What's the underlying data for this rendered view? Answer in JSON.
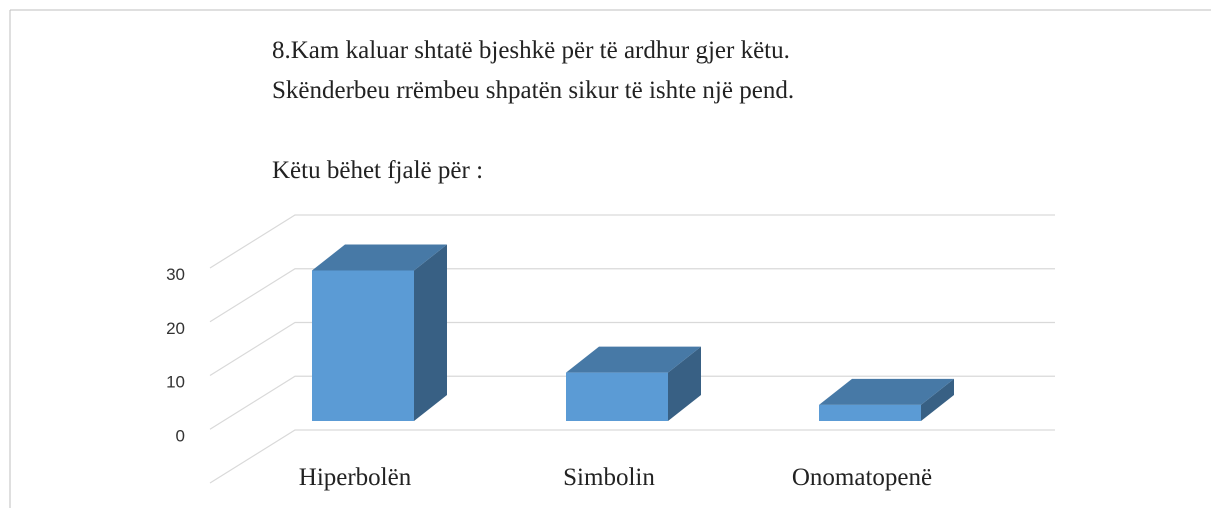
{
  "chart_data": {
    "type": "bar3d",
    "title": [
      "8.Kam kaluar shtatë bjeshkë për të ardhur gjer këtu.",
      "Skënderbeu rrëmbeu shpatën sikur të ishte një pend.",
      "Këtu bëhet fjalë për :"
    ],
    "categories": [
      "Hiperbolën",
      "Simbolin",
      "Onomatopenë"
    ],
    "values": [
      28,
      9,
      3
    ],
    "color": "#5b9bd5",
    "ylim": [
      0,
      40
    ],
    "yticks": [
      0,
      10,
      20,
      30
    ],
    "grid": true
  }
}
